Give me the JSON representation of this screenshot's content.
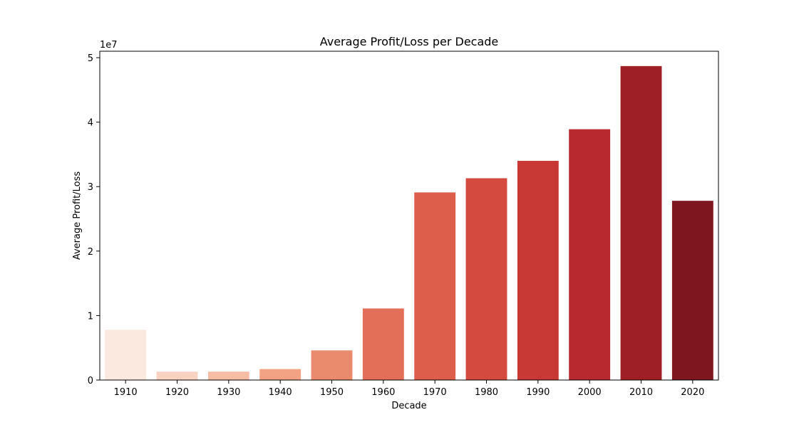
{
  "chart_data": {
    "type": "bar",
    "title": "Average Profit/Loss per Decade",
    "xlabel": "Decade",
    "ylabel": "Average Profit/Loss",
    "y_offset_label": "1e7",
    "categories": [
      "1910",
      "1920",
      "1930",
      "1940",
      "1950",
      "1960",
      "1970",
      "1980",
      "1990",
      "2000",
      "2010",
      "2020"
    ],
    "values": [
      7800000,
      1300000,
      1300000,
      1700000,
      4600000,
      11100000,
      29100000,
      31300000,
      34000000,
      38900000,
      48700000,
      27800000
    ],
    "colors": [
      "#fbe9e0",
      "#f9d3c1",
      "#f6bca4",
      "#f1a384",
      "#eb8b6d",
      "#e46f59",
      "#dd5e4a",
      "#d44a3f",
      "#c83936",
      "#b7282f",
      "#9f1f27",
      "#7d161f"
    ],
    "ylim": [
      0,
      51000000
    ],
    "yticks": [
      0,
      10000000,
      20000000,
      30000000,
      40000000,
      50000000
    ],
    "ytick_labels": [
      "0",
      "1",
      "2",
      "3",
      "4",
      "5"
    ],
    "grid": false,
    "legend": "none"
  }
}
